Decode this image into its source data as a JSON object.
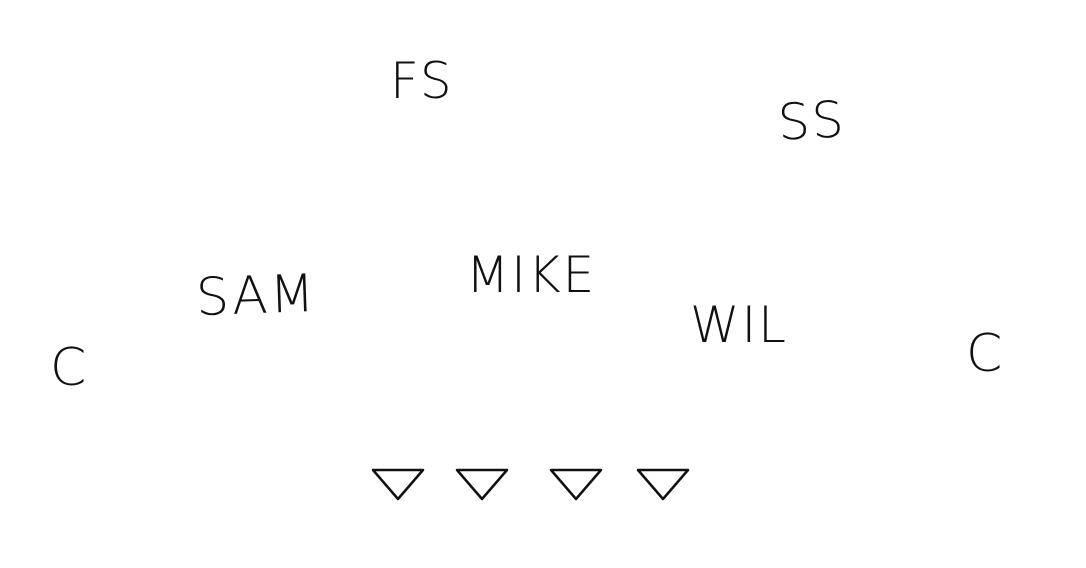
{
  "positions": {
    "free_safety": "FS",
    "strong_safety": "SS",
    "sam": "SAM",
    "mike": "MIKE",
    "wil": "WIL",
    "corner_left": "C",
    "corner_right": "C"
  },
  "defensive_line": {
    "count": 4,
    "symbol": "down-triangle-icon",
    "stroke_color": "#111111"
  },
  "colors": {
    "ink": "#111111",
    "background": "#ffffff"
  }
}
